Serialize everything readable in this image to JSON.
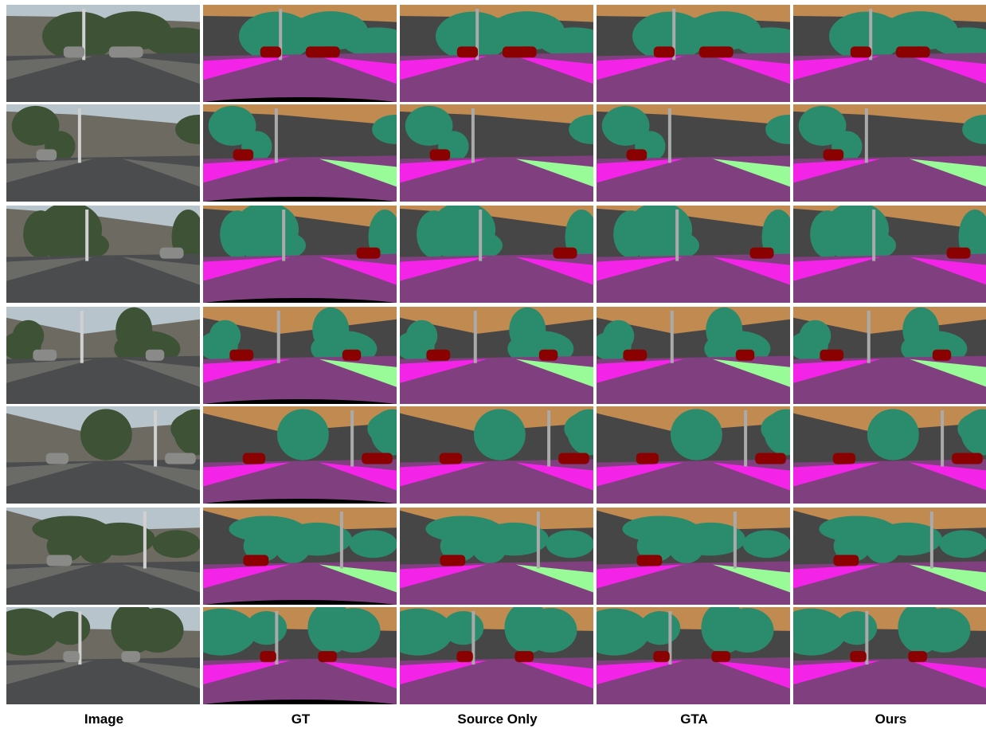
{
  "columns": [
    "Image",
    "GT",
    "Source Only",
    "GTA",
    "Ours"
  ]
}
